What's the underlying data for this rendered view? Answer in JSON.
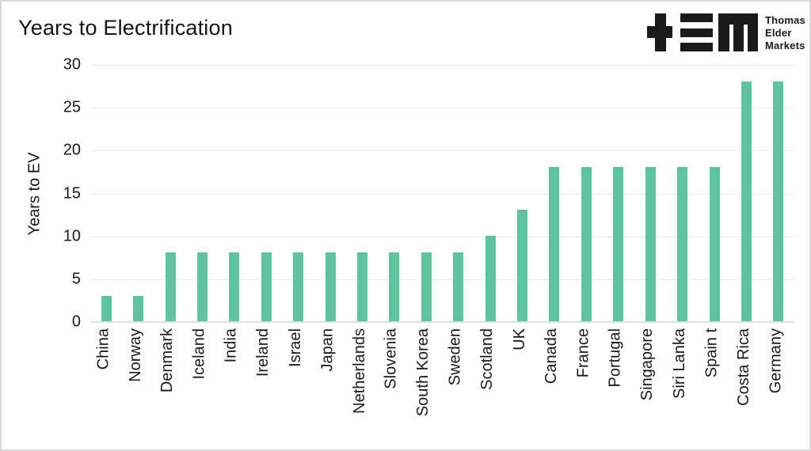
{
  "page": {
    "background": "#ffffff",
    "border_color": "#d9d9d9"
  },
  "header": {
    "title": "Years to Electrification",
    "logo": {
      "glyphs": [
        "plus-glyph",
        "triple-bar-glyph",
        "m-glyph"
      ],
      "brand_lines": [
        "Thomas",
        "Elder",
        "Markets"
      ],
      "color": "#1a1a1a"
    }
  },
  "chart_data": {
    "type": "bar",
    "title": "Years to Electrification",
    "xlabel": "",
    "ylabel": "Years to EV",
    "categories": [
      "China",
      "Norway",
      "Denmark",
      "Iceland",
      "India",
      "Ireland",
      "Israel",
      "Japan",
      "Netherlands",
      "Slovenia",
      "South Korea",
      "Sweden",
      "Scotland",
      "UK",
      "Canada",
      "France",
      "Portugal",
      "Singapore",
      "Siri Lanka",
      "Spain t",
      "Costa Rica",
      "Germany"
    ],
    "values": [
      3,
      3,
      8,
      8,
      8,
      8,
      8,
      8,
      8,
      8,
      8,
      8,
      10,
      13,
      18,
      18,
      18,
      18,
      18,
      18,
      28,
      28
    ],
    "yticks": [
      0,
      5,
      10,
      15,
      20,
      25,
      30
    ],
    "ylim": [
      0,
      30
    ],
    "bar_color": "#5fc3a0",
    "grid": true,
    "gridline_color": "#e9e9e9",
    "legend": "none"
  }
}
